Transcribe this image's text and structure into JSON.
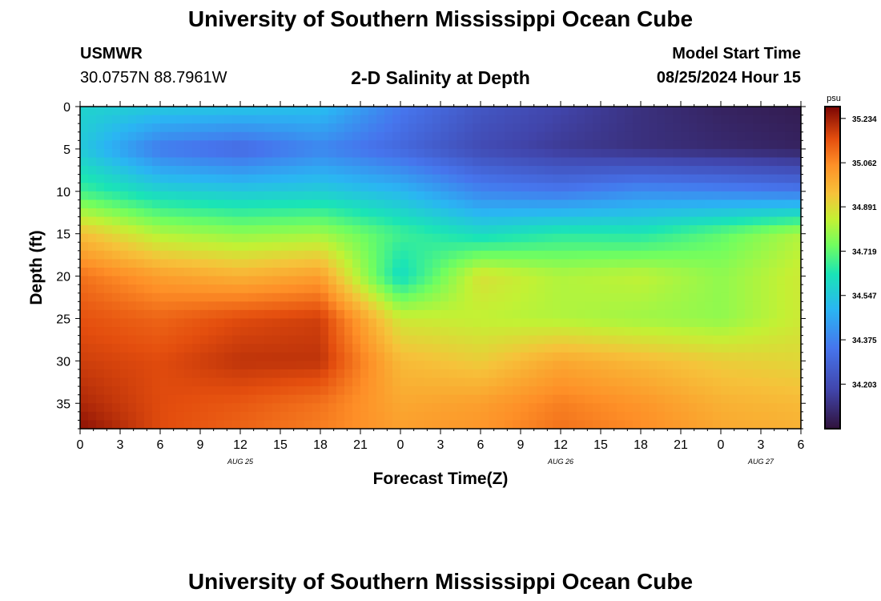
{
  "header": {
    "title": "University of Southern Mississippi Ocean Cube",
    "station": "USMWR",
    "coords": "30.0757N  88.7961W",
    "subtitle": "2-D Salinity at Depth",
    "model_label": "Model Start Time",
    "model_time": "08/25/2024 Hour 15"
  },
  "footer": {
    "title": "University of Southern Mississippi Ocean Cube"
  },
  "chart_data": {
    "type": "heatmap",
    "title": "2-D Salinity at Depth",
    "xlabel": "Forecast Time(Z)",
    "ylabel": "Depth (ft)",
    "x_ticks": [
      "0",
      "3",
      "6",
      "9",
      "12",
      "15",
      "18",
      "21",
      "0",
      "3",
      "6",
      "9",
      "12",
      "15",
      "18",
      "21",
      "0",
      "3",
      "6"
    ],
    "x_hours": [
      0,
      3,
      6,
      9,
      12,
      15,
      18,
      21,
      24,
      27,
      30,
      33,
      36,
      39,
      42,
      45,
      48,
      51,
      54
    ],
    "date_labels": [
      {
        "label": "AUG 25",
        "hour": 12
      },
      {
        "label": "AUG 26",
        "hour": 36
      },
      {
        "label": "AUG 27",
        "hour": 51
      }
    ],
    "y_ticks": [
      0,
      5,
      10,
      15,
      20,
      25,
      30,
      35
    ],
    "ylim": [
      0,
      38
    ],
    "xlim": [
      0,
      54
    ],
    "colorbar": {
      "unit": "psu",
      "ticks": [
        "35.234",
        "35.062",
        "34.891",
        "34.719",
        "34.547",
        "34.375",
        "34.203"
      ],
      "tick_values": [
        35.234,
        35.062,
        34.891,
        34.719,
        34.547,
        34.375,
        34.203
      ],
      "range": [
        34.03,
        35.28
      ]
    },
    "grid": {
      "hours": [
        0,
        6,
        12,
        18,
        24,
        30,
        36,
        42,
        48,
        54
      ],
      "depths": [
        0,
        5,
        10,
        15,
        20,
        25,
        30,
        35,
        38
      ],
      "values": [
        [
          34.58,
          34.55,
          34.54,
          34.52,
          34.35,
          34.24,
          34.18,
          34.12,
          34.08,
          34.06
        ],
        [
          34.55,
          34.35,
          34.3,
          34.38,
          34.3,
          34.2,
          34.15,
          34.12,
          34.1,
          34.08
        ],
        [
          34.68,
          34.58,
          34.55,
          34.56,
          34.5,
          34.38,
          34.35,
          34.4,
          34.38,
          34.35
        ],
        [
          34.95,
          34.82,
          34.78,
          34.8,
          34.68,
          34.6,
          34.65,
          34.64,
          34.72,
          34.82
        ],
        [
          35.1,
          35.02,
          34.98,
          35.02,
          34.6,
          34.88,
          34.82,
          34.84,
          34.78,
          34.86
        ],
        [
          35.15,
          35.12,
          35.16,
          35.18,
          34.86,
          34.84,
          34.82,
          34.8,
          34.78,
          34.86
        ],
        [
          35.18,
          35.16,
          35.2,
          35.2,
          34.96,
          34.92,
          35.0,
          34.96,
          34.92,
          34.9
        ],
        [
          35.22,
          35.16,
          35.14,
          35.1,
          35.0,
          35.02,
          35.08,
          35.04,
          34.98,
          34.96
        ],
        [
          35.26,
          35.16,
          35.12,
          35.08,
          35.02,
          35.04,
          35.1,
          35.06,
          35.0,
          34.98
        ]
      ]
    }
  }
}
